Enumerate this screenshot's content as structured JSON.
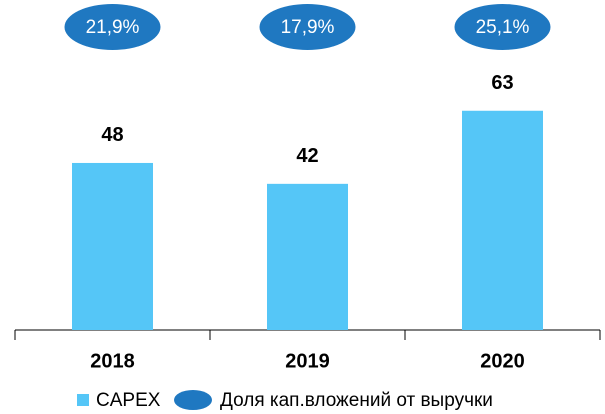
{
  "chart_data": {
    "type": "bar",
    "categories": [
      "2018",
      "2019",
      "2020"
    ],
    "series": [
      {
        "name": "CAPEX",
        "color": "#55c6f7",
        "values": [
          48,
          42,
          63
        ]
      },
      {
        "name": "Доля кап.вложений от выручки",
        "color": "#1f78c1",
        "values": [
          21.9,
          17.9,
          25.1
        ],
        "value_labels": [
          "21,9%",
          "17,9%",
          "25,1%"
        ]
      }
    ]
  }
}
